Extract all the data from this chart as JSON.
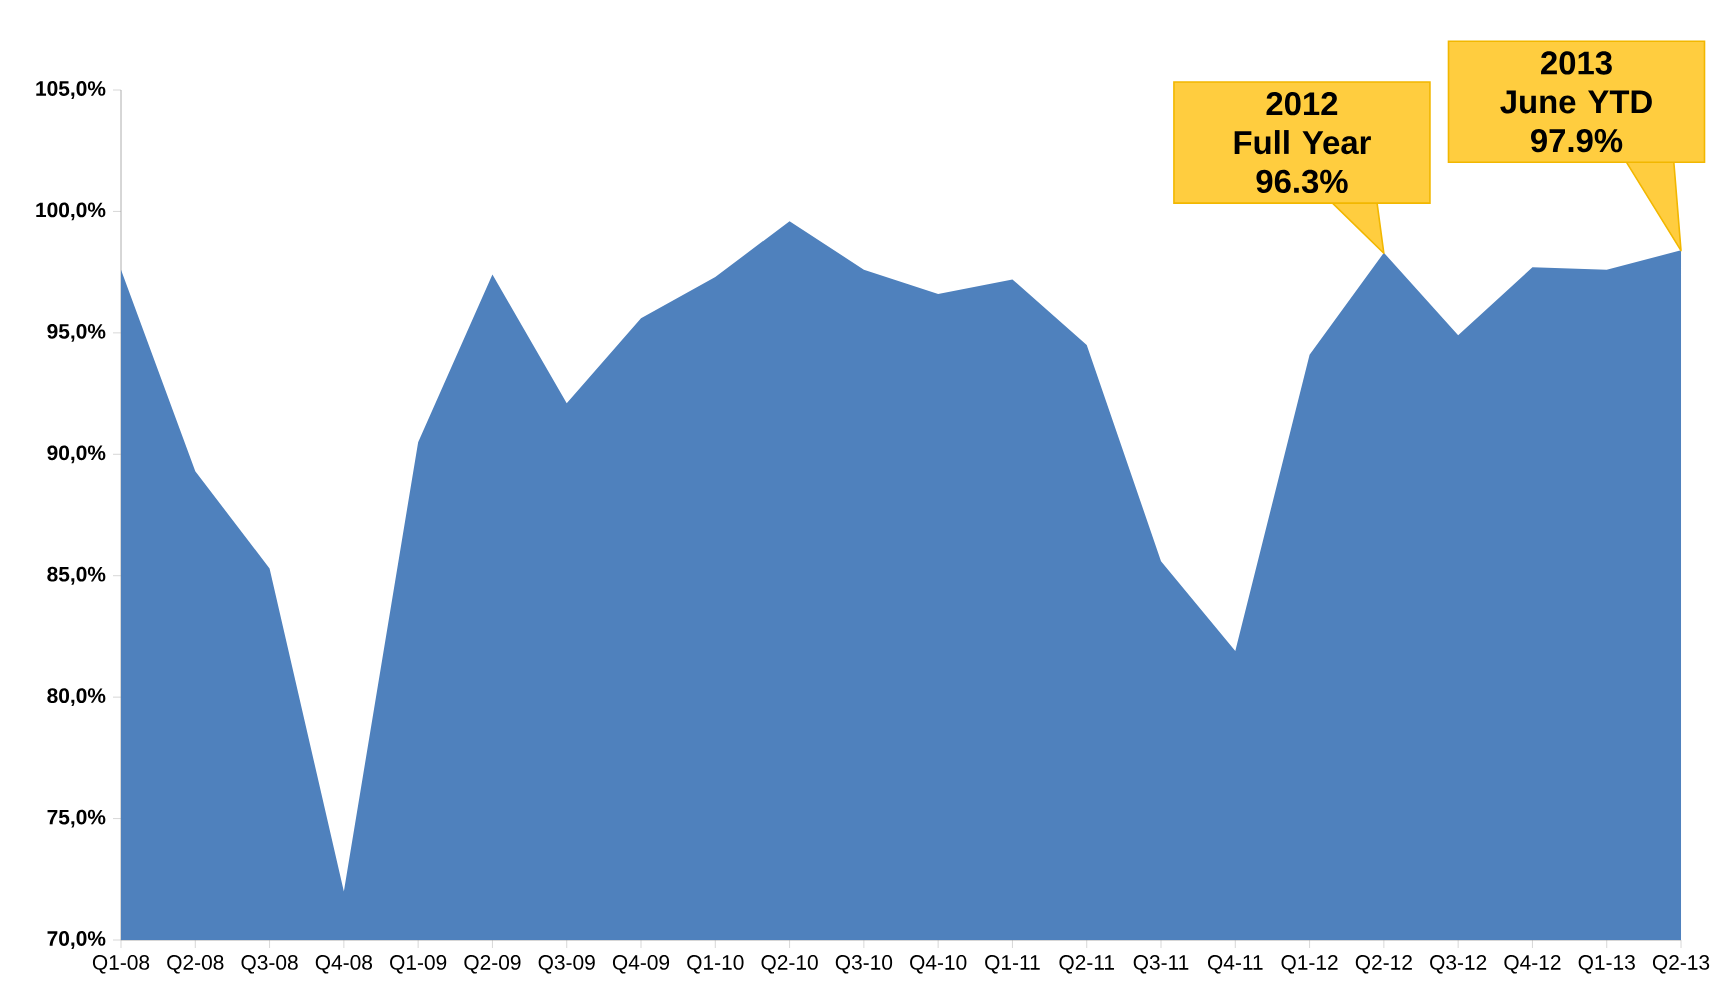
{
  "chart_data": {
    "type": "area",
    "categories": [
      "Q1-08",
      "Q2-08",
      "Q3-08",
      "Q4-08",
      "Q1-09",
      "Q2-09",
      "Q3-09",
      "Q4-09",
      "Q1-10",
      "Q2-10",
      "Q3-10",
      "Q4-10",
      "Q1-11",
      "Q2-11",
      "Q3-11",
      "Q4-11",
      "Q1-12",
      "Q2-12",
      "Q3-12",
      "Q4-12",
      "Q1-13",
      "Q2-13"
    ],
    "values": [
      97.6,
      89.3,
      85.3,
      72.0,
      90.5,
      97.4,
      92.1,
      95.6,
      97.3,
      99.6,
      97.6,
      96.6,
      97.2,
      94.5,
      85.6,
      81.9,
      94.1,
      98.3,
      94.9,
      97.7,
      97.6,
      98.4
    ],
    "color": "#4f81bd",
    "ylim": [
      70,
      105
    ],
    "yticks": [
      {
        "value": 70,
        "label": "70,0%"
      },
      {
        "value": 75,
        "label": "75,0%"
      },
      {
        "value": 80,
        "label": "80,0%"
      },
      {
        "value": 85,
        "label": "85,0%"
      },
      {
        "value": 90,
        "label": "90,0%"
      },
      {
        "value": 95,
        "label": "95,0%"
      },
      {
        "value": 100,
        "label": "100,0%"
      },
      {
        "value": 105,
        "label": "105,0%"
      }
    ],
    "annotations": [
      "2012\nFull Year\n96.3%",
      "2013\nJune YTD\n97.9%"
    ]
  }
}
